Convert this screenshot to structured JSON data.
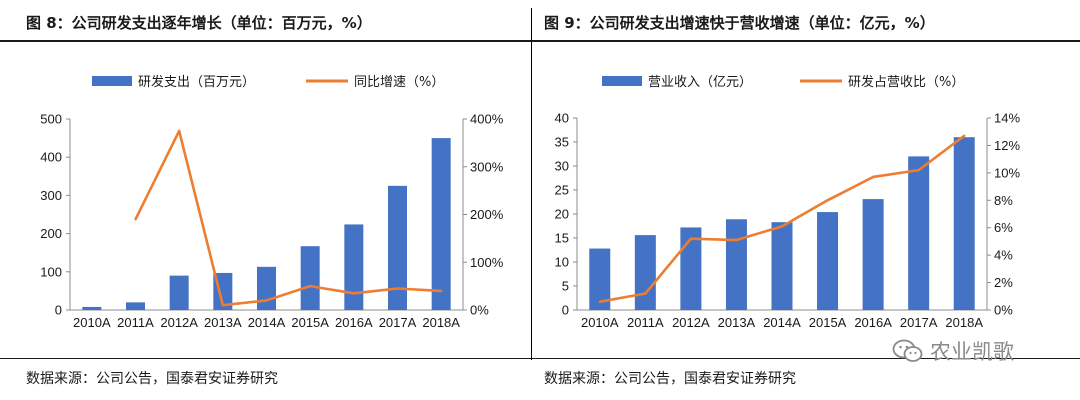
{
  "left": {
    "title": "图 8：公司研发支出逐年增长（单位：百万元，%）",
    "source": "数据来源：公司公告，国泰君安证券研究"
  },
  "right": {
    "title": "图 9：公司研发支出增速快于营收增速（单位：亿元，%）",
    "source": "数据来源：公司公告，国泰君安证券研究"
  },
  "watermark": {
    "text": "农业凯歌",
    "icon": "wechat-icon"
  },
  "colors": {
    "bar": "#4472C4",
    "line": "#ED7D31"
  },
  "chart_data": [
    {
      "type": "bar",
      "categories": [
        "2010A",
        "2011A",
        "2012A",
        "2013A",
        "2014A",
        "2015A",
        "2016A",
        "2017A",
        "2018A"
      ],
      "series": [
        {
          "name": "研发支出（百万元）",
          "type": "bar",
          "axis": "left",
          "values": [
            8,
            20,
            90,
            97,
            113,
            167,
            224,
            325,
            450
          ]
        },
        {
          "name": "同比增速（%）",
          "type": "line",
          "axis": "right",
          "values": [
            null,
            190,
            375,
            10,
            20,
            50,
            35,
            45,
            40
          ]
        }
      ],
      "ylim": [
        0,
        500
      ],
      "yticks": [
        "0",
        "100",
        "200",
        "300",
        "400",
        "500"
      ],
      "y2lim": [
        0,
        400
      ],
      "y2ticks": [
        "0%",
        "100%",
        "200%",
        "300%",
        "400%"
      ],
      "legend": "top",
      "grid": false
    },
    {
      "type": "bar",
      "categories": [
        "2010A",
        "2011A",
        "2012A",
        "2013A",
        "2014A",
        "2015A",
        "2016A",
        "2017A",
        "2018A"
      ],
      "series": [
        {
          "name": "营业收入（亿元）",
          "type": "bar",
          "axis": "left",
          "values": [
            12.8,
            15.6,
            17.2,
            18.9,
            18.3,
            20.4,
            23.1,
            32.0,
            36.0
          ]
        },
        {
          "name": "研发占营收比（%）",
          "type": "line",
          "axis": "right",
          "values": [
            0.6,
            1.2,
            5.2,
            5.1,
            6.1,
            8.0,
            9.7,
            10.2,
            12.7
          ]
        }
      ],
      "ylim": [
        0,
        40
      ],
      "yticks": [
        "0",
        "5",
        "10",
        "15",
        "20",
        "25",
        "30",
        "35",
        "40"
      ],
      "y2lim": [
        0,
        14
      ],
      "y2ticks": [
        "0%",
        "2%",
        "4%",
        "6%",
        "8%",
        "10%",
        "12%",
        "14%"
      ],
      "legend": "top",
      "grid": false
    }
  ]
}
